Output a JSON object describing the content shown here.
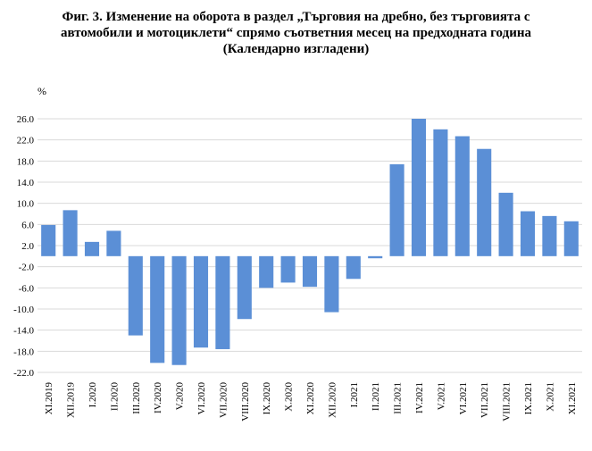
{
  "title_lines": [
    "Фиг. 3. Изменение на оборота в раздел „Търговия на дребно, без търговията с",
    "автомобили и мотоциклети“ спрямо съответния месец на предходната година",
    "(Календарно изгладени)"
  ],
  "chart_data": {
    "type": "bar",
    "title": "Фиг. 3. Изменение на оборота в раздел „Търговия на дребно, без търговията с автомобили и мотоциклети“ спрямо съответния месец на предходната година (Календарно изгладени)",
    "ylabel": "%",
    "xlabel": "",
    "ylim": [
      -22.0,
      26.0
    ],
    "yticks": [
      "26.0",
      "22.0",
      "18.0",
      "14.0",
      "10.0",
      "6.0",
      "2.0",
      "-2.0",
      "-6.0",
      "-10.0",
      "-14.0",
      "-18.0",
      "-22.0"
    ],
    "grid": true,
    "bar_color": "#5b8fd6",
    "categories": [
      "XI.2019",
      "XII.2019",
      "I.2020",
      "II.2020",
      "III.2020",
      "IV.2020",
      "V.2020",
      "VI.2020",
      "VII.2020",
      "VIII.2020",
      "IX.2020",
      "X.2020",
      "XI.2020",
      "XII.2020",
      "I.2021",
      "II.2021",
      "III.2021",
      "IV.2021",
      "V.2021",
      "VI.2021",
      "VII.2021",
      "VIII.2021",
      "IX.2021",
      "X.2021",
      "XI.2021"
    ],
    "values": [
      5.9,
      8.7,
      2.7,
      4.8,
      -15.0,
      -20.2,
      -20.6,
      -17.3,
      -17.6,
      -11.9,
      -6.0,
      -5.0,
      -5.8,
      -10.6,
      -4.3,
      -0.4,
      17.4,
      26.0,
      24.0,
      22.7,
      20.3,
      12.0,
      8.5,
      7.6,
      6.6
    ]
  }
}
